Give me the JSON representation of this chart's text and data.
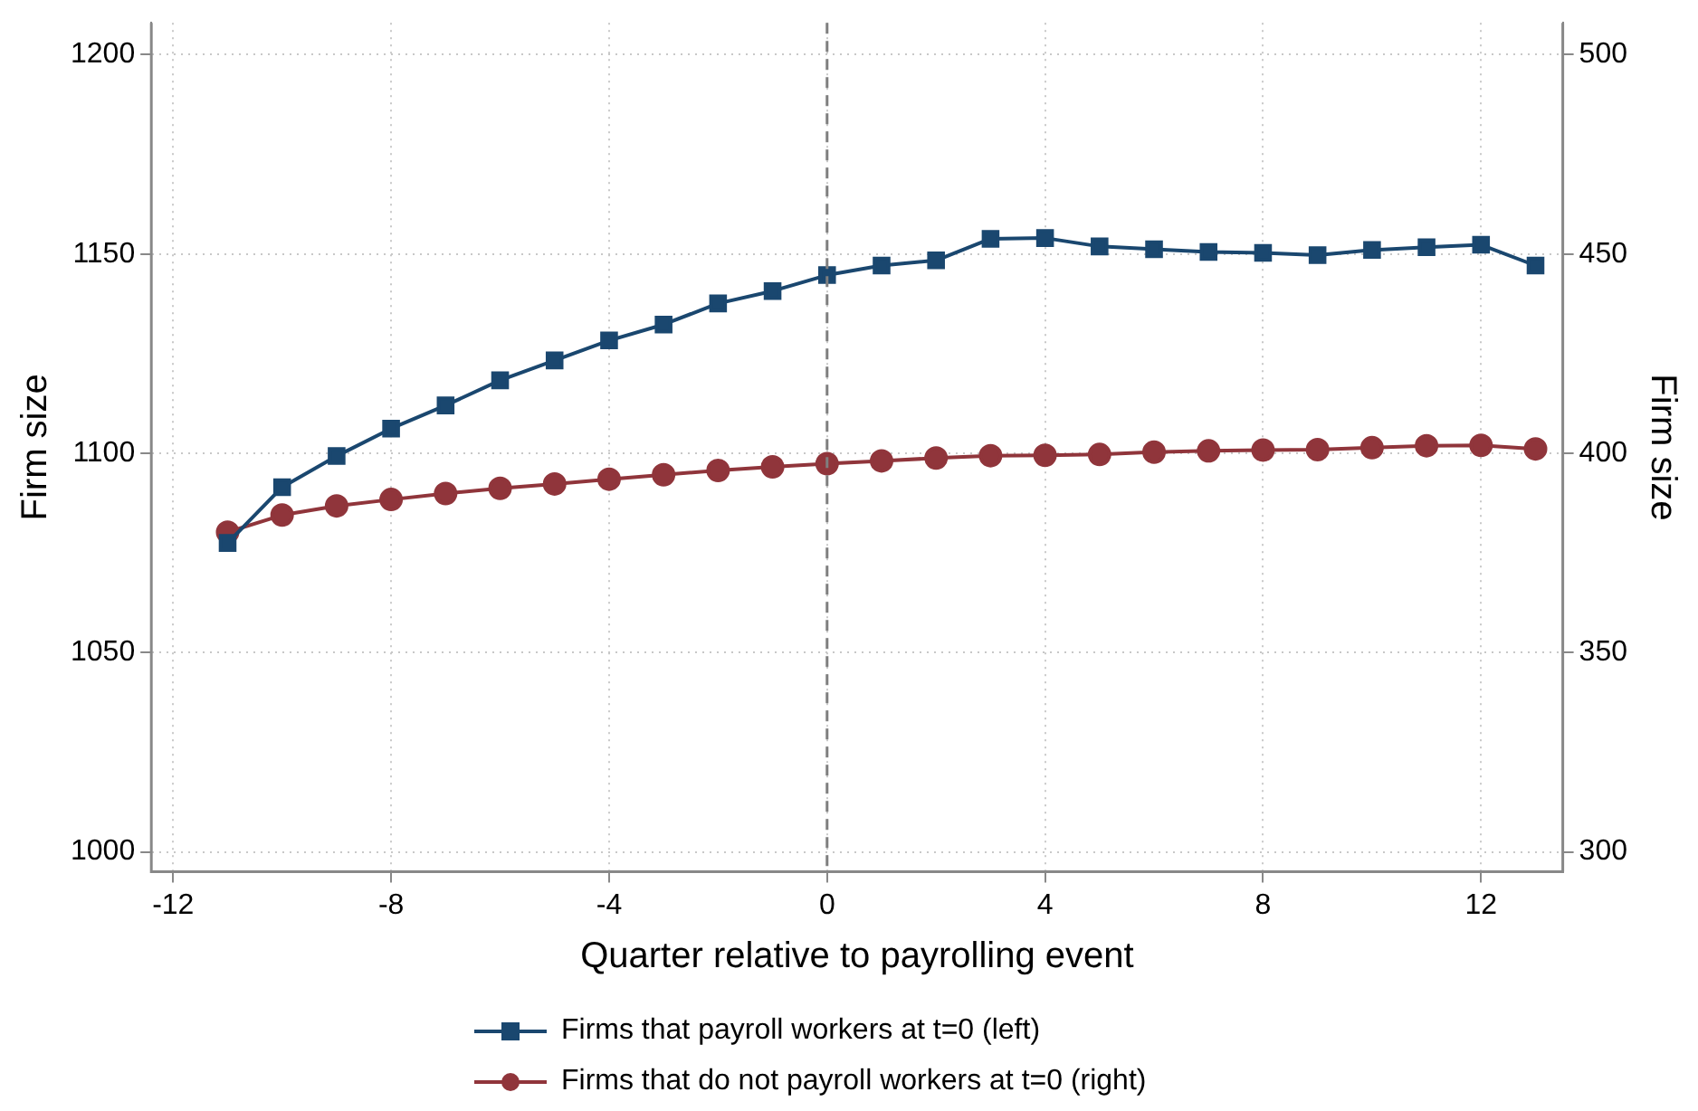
{
  "chart_data": {
    "type": "line",
    "xlabel": "Quarter relative to payrolling event",
    "ylabel": "Firm size",
    "y2label": "Firm size",
    "x": [
      -11,
      -10,
      -9,
      -8,
      -7,
      -6,
      -5,
      -4,
      -3,
      -2,
      -1,
      0,
      1,
      2,
      3,
      4,
      5,
      6,
      7,
      8,
      9,
      10,
      11,
      12,
      13
    ],
    "series": [
      {
        "name": "Firms that payroll workers at t=0 (left)",
        "color": "#1a476f",
        "marker": "square",
        "values": [
          1077.5,
          1091.5,
          1099.3,
          1106.2,
          1112,
          1118.3,
          1123.3,
          1128.3,
          1132.3,
          1137.6,
          1140.7,
          1144.7,
          1147.1,
          1148.4,
          1153.8,
          1154,
          1151.9,
          1151.2,
          1150.5,
          1150.3,
          1149.7,
          1151,
          1151.7,
          1152.3,
          1147.1
        ]
      },
      {
        "name": "Firms that do not payroll workers at t=0 (right)",
        "color": "#90353b",
        "marker": "circle",
        "axis": "y2",
        "values": [
          380.2,
          384.5,
          386.8,
          388.4,
          389.9,
          391.2,
          392.3,
          393.5,
          394.6,
          395.7,
          396.6,
          397.4,
          398.1,
          398.8,
          399.4,
          399.5,
          399.7,
          400.3,
          400.6,
          400.8,
          400.9,
          401.4,
          401.9,
          402,
          401.1
        ]
      }
    ],
    "xlim": [
      -12.4,
      13.5
    ],
    "xticks": [
      -12,
      -8,
      -4,
      0,
      4,
      8,
      12
    ],
    "ylim": [
      995,
      1208
    ],
    "yticks": [
      1000,
      1050,
      1100,
      1150,
      1200
    ],
    "y2lim": [
      295,
      508
    ],
    "y2ticks": [
      300,
      350,
      400,
      450,
      500
    ],
    "ref_lines": [
      {
        "axis": "x",
        "value": 0,
        "color": "#7f7f7f",
        "line_style": "dashed"
      }
    ],
    "grid": true,
    "legend": "bottom",
    "line_style": "solid"
  }
}
